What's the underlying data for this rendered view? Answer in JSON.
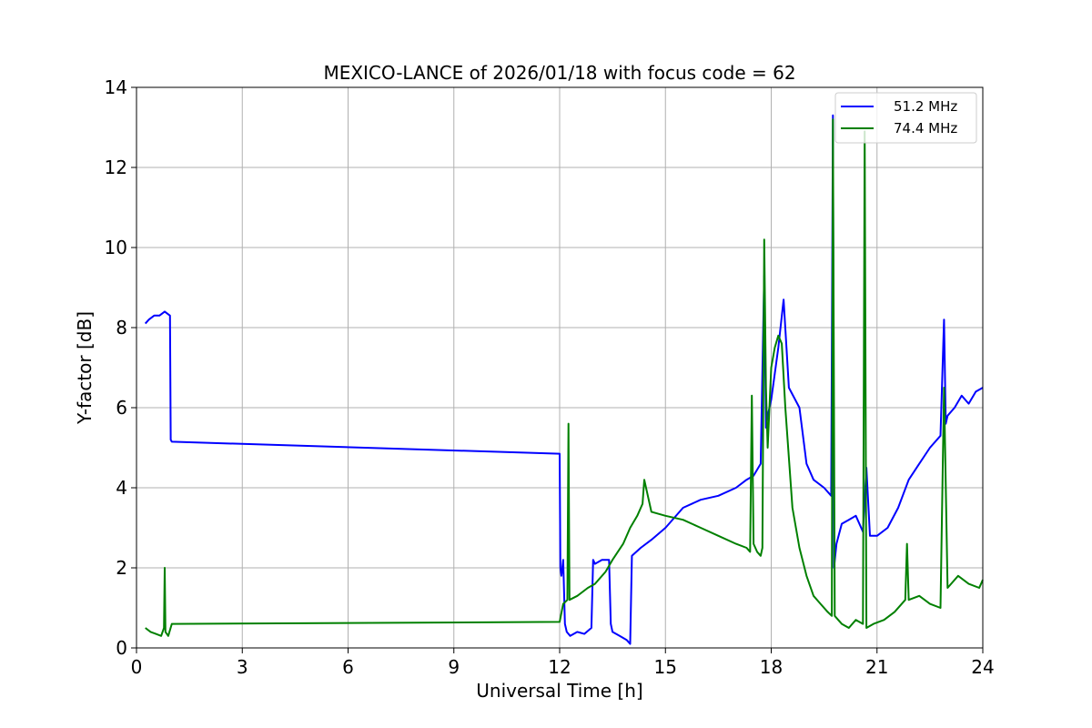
{
  "chart_data": {
    "type": "line",
    "title": "MEXICO-LANCE of 2026/01/18 with focus code = 62",
    "xlabel": "Universal Time [h]",
    "ylabel": "Y-factor [dB]",
    "xlim": [
      0,
      24
    ],
    "ylim": [
      0,
      14
    ],
    "xticks": [
      "0",
      "3",
      "6",
      "9",
      "12",
      "15",
      "18",
      "21",
      "24"
    ],
    "yticks": [
      "0",
      "2",
      "4",
      "6",
      "8",
      "10",
      "12",
      "14"
    ],
    "grid": true,
    "legend_position": "top-right",
    "series": [
      {
        "name": "51.2 MHz",
        "color": "#0000ff",
        "x": [
          0.25,
          0.35,
          0.5,
          0.65,
          0.8,
          0.95,
          0.97,
          1.0,
          12.0,
          12.02,
          12.05,
          12.1,
          12.15,
          12.2,
          12.3,
          12.5,
          12.7,
          12.9,
          12.95,
          13.0,
          13.2,
          13.4,
          13.45,
          13.5,
          13.7,
          13.9,
          14.0,
          14.05,
          14.3,
          14.6,
          15.0,
          15.5,
          16.0,
          16.5,
          17.0,
          17.3,
          17.5,
          17.7,
          17.8,
          17.85,
          17.9,
          18.0,
          18.2,
          18.35,
          18.5,
          18.8,
          19.0,
          19.2,
          19.5,
          19.7,
          19.75,
          19.78,
          19.85,
          20.0,
          20.2,
          20.4,
          20.6,
          20.7,
          20.8,
          21.0,
          21.3,
          21.6,
          21.9,
          22.2,
          22.5,
          22.8,
          22.9,
          22.95,
          23.0,
          23.2,
          23.4,
          23.6,
          23.8,
          24.0
        ],
        "y": [
          8.1,
          8.2,
          8.3,
          8.3,
          8.4,
          8.3,
          5.2,
          5.15,
          4.85,
          2.0,
          1.8,
          2.2,
          0.6,
          0.4,
          0.3,
          0.4,
          0.35,
          0.5,
          2.2,
          2.1,
          2.2,
          2.2,
          0.6,
          0.4,
          0.3,
          0.2,
          0.1,
          2.3,
          2.5,
          2.7,
          3.0,
          3.5,
          3.7,
          3.8,
          4.0,
          4.2,
          4.3,
          4.6,
          9.3,
          5.5,
          5.8,
          6.2,
          7.5,
          8.7,
          6.5,
          6.0,
          4.6,
          4.2,
          4.0,
          3.8,
          13.3,
          2.0,
          2.6,
          3.1,
          3.2,
          3.3,
          2.9,
          4.5,
          2.8,
          2.8,
          3.0,
          3.5,
          4.2,
          4.6,
          5.0,
          5.3,
          8.2,
          5.6,
          5.8,
          6.0,
          6.3,
          6.1,
          6.4,
          6.5
        ]
      },
      {
        "name": "74.4 MHz",
        "color": "#008000",
        "x": [
          0.25,
          0.4,
          0.55,
          0.7,
          0.78,
          0.8,
          0.82,
          0.9,
          1.0,
          12.0,
          12.1,
          12.22,
          12.25,
          12.28,
          12.5,
          12.8,
          13.0,
          13.3,
          13.5,
          13.8,
          14.0,
          14.2,
          14.35,
          14.4,
          14.6,
          15.0,
          15.5,
          16.0,
          16.5,
          17.0,
          17.3,
          17.4,
          17.45,
          17.5,
          17.6,
          17.7,
          17.75,
          17.8,
          17.85,
          17.9,
          18.0,
          18.1,
          18.2,
          18.3,
          18.4,
          18.6,
          18.8,
          19.0,
          19.2,
          19.4,
          19.6,
          19.72,
          19.75,
          19.8,
          19.9,
          20.0,
          20.2,
          20.4,
          20.6,
          20.65,
          20.7,
          20.9,
          21.2,
          21.5,
          21.8,
          21.85,
          21.9,
          22.2,
          22.5,
          22.8,
          22.9,
          23.0,
          23.3,
          23.6,
          23.9,
          24.0
        ],
        "y": [
          0.5,
          0.4,
          0.35,
          0.3,
          0.5,
          2.0,
          0.4,
          0.3,
          0.6,
          0.65,
          1.1,
          1.2,
          5.6,
          1.2,
          1.3,
          1.5,
          1.6,
          1.9,
          2.2,
          2.6,
          3.0,
          3.3,
          3.6,
          4.2,
          3.4,
          3.3,
          3.2,
          3.0,
          2.8,
          2.6,
          2.5,
          2.4,
          6.3,
          2.6,
          2.4,
          2.3,
          2.5,
          10.2,
          6.5,
          5.0,
          7.0,
          7.5,
          7.8,
          7.6,
          6.0,
          3.5,
          2.5,
          1.8,
          1.3,
          1.1,
          0.9,
          0.8,
          13.2,
          0.8,
          0.7,
          0.6,
          0.5,
          0.7,
          0.6,
          12.9,
          0.5,
          0.6,
          0.7,
          0.9,
          1.2,
          2.6,
          1.2,
          1.3,
          1.1,
          1.0,
          6.5,
          1.5,
          1.8,
          1.6,
          1.5,
          1.7
        ]
      }
    ]
  }
}
